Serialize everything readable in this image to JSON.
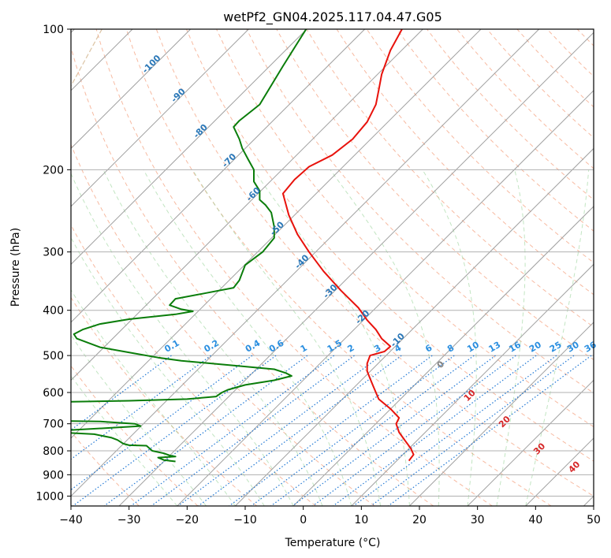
{
  "chart_data": {
    "type": "line",
    "title": "wetPf2_GN04.2025.117.04.47.G05",
    "xlabel": "Temperature (°C)",
    "ylabel": "Pressure (hPa)",
    "xlim": [
      -40,
      50
    ],
    "ylim": [
      1050,
      100
    ],
    "y_scale": "log",
    "grid": true,
    "x_ticks": [
      -40,
      -30,
      -20,
      -10,
      0,
      10,
      20,
      30,
      40,
      50
    ],
    "y_ticks": [
      100,
      200,
      300,
      400,
      500,
      600,
      700,
      800,
      900,
      1000
    ],
    "x_tick_labels": [
      "−40",
      "−30",
      "−20",
      "−10",
      "0",
      "10",
      "20",
      "30",
      "40",
      "50"
    ],
    "y_tick_labels": [
      "100",
      "200",
      "300",
      "400",
      "500",
      "600",
      "700",
      "800",
      "900",
      "1000"
    ],
    "skew_isotherm_labels": [
      {
        "text": "-100",
        "p": 120
      },
      {
        "text": "-90",
        "p": 140
      },
      {
        "text": "-80",
        "p": 167
      },
      {
        "text": "-70",
        "p": 193
      },
      {
        "text": "-60",
        "p": 228
      },
      {
        "text": "-50",
        "p": 270
      },
      {
        "text": "-40",
        "p": 318
      },
      {
        "text": "-30",
        "p": 368
      },
      {
        "text": "-20",
        "p": 418
      },
      {
        "text": "-10",
        "p": 468
      }
    ],
    "mixing_ratio_labels": [
      "0.1",
      "0.2",
      "0.4",
      "0.6",
      "1",
      "1.5",
      "2",
      "3",
      "4",
      "6",
      "8",
      "10",
      "13",
      "16",
      "20",
      "25",
      "30",
      "36"
    ],
    "mixing_ratio_values": [
      0.1,
      0.2,
      0.4,
      0.6,
      1,
      1.5,
      2,
      3,
      4,
      6,
      8,
      10,
      13,
      16,
      20,
      25,
      30,
      36
    ],
    "mixing_ratio_label_x": [
      -22.7,
      -15.9,
      -8.8,
      -4.7,
      0.7,
      5.3,
      8.8,
      13.4,
      16.9,
      22.2,
      26.0,
      29.4,
      33.1,
      36.6,
      40.1,
      43.6,
      46.6,
      49.6
    ],
    "isotherm_label_points": [
      {
        "text": "0",
        "t": 24,
        "p": 528,
        "color": "#808080"
      },
      {
        "text": "10",
        "t": 29,
        "p": 615,
        "color": "#d62728"
      },
      {
        "text": "20",
        "t": 35,
        "p": 700,
        "color": "#d62728"
      },
      {
        "text": "30",
        "t": 41,
        "p": 800,
        "color": "#d62728"
      },
      {
        "text": "40",
        "t": 47,
        "p": 875,
        "color": "#d62728"
      }
    ],
    "series": [
      {
        "color": "#e8120c",
        "points": [
          [
            17,
            100
          ],
          [
            15,
            111
          ],
          [
            13.5,
            125
          ],
          [
            13,
            135
          ],
          [
            12.5,
            145
          ],
          [
            11,
            158
          ],
          [
            8.5,
            172
          ],
          [
            5,
            186
          ],
          [
            1,
            197
          ],
          [
            -1.5,
            210
          ],
          [
            -3.5,
            225
          ],
          [
            -2.5,
            250
          ],
          [
            -1,
            275
          ],
          [
            1,
            300
          ],
          [
            3.5,
            330
          ],
          [
            6.5,
            363
          ],
          [
            9.5,
            395
          ],
          [
            11,
            420
          ],
          [
            12.5,
            440
          ],
          [
            13.5,
            460
          ],
          [
            15,
            478
          ],
          [
            14,
            490
          ],
          [
            11.5,
            500
          ],
          [
            11,
            520
          ],
          [
            11,
            540
          ],
          [
            11.5,
            560
          ],
          [
            12,
            580
          ],
          [
            12.5,
            600
          ],
          [
            13,
            620
          ],
          [
            15,
            650
          ],
          [
            16.5,
            680
          ],
          [
            16,
            700
          ],
          [
            16.5,
            730
          ],
          [
            17.5,
            760
          ],
          [
            18.5,
            790
          ],
          [
            19,
            815
          ],
          [
            18.5,
            830
          ],
          [
            18.2,
            840
          ]
        ]
      },
      {
        "color": "#0a7d0a",
        "points": [
          [
            0.5,
            100
          ],
          [
            -3.5,
            120
          ],
          [
            -7.5,
            145
          ],
          [
            -11,
            157
          ],
          [
            -12,
            162
          ],
          [
            -11,
            172
          ],
          [
            -10.5,
            180
          ],
          [
            -9.5,
            190
          ],
          [
            -8.5,
            200
          ],
          [
            -8.5,
            212
          ],
          [
            -7.5,
            222
          ],
          [
            -7.5,
            232
          ],
          [
            -6.5,
            238
          ],
          [
            -5.5,
            247
          ],
          [
            -5,
            265
          ],
          [
            -5,
            280
          ],
          [
            -7,
            300
          ],
          [
            -10,
            320
          ],
          [
            -11,
            345
          ],
          [
            -12,
            358
          ],
          [
            -17,
            368
          ],
          [
            -22,
            378
          ],
          [
            -23,
            390
          ],
          [
            -21,
            398
          ],
          [
            -19,
            402
          ],
          [
            -22,
            408
          ],
          [
            -30,
            418
          ],
          [
            -35,
            428
          ],
          [
            -38,
            440
          ],
          [
            -39.5,
            450
          ],
          [
            -39,
            460
          ],
          [
            -35,
            480
          ],
          [
            -29,
            495
          ],
          [
            -25,
            505
          ],
          [
            -21,
            513
          ],
          [
            -12,
            525
          ],
          [
            -5,
            535
          ],
          [
            -3,
            545
          ],
          [
            -2,
            553
          ],
          [
            -5,
            565
          ],
          [
            -10,
            578
          ],
          [
            -13,
            592
          ],
          [
            -14,
            600
          ],
          [
            -15,
            612
          ],
          [
            -20,
            620
          ],
          [
            -30,
            625
          ],
          [
            -40,
            628
          ],
          [
            -42,
            628
          ]
        ]
      },
      {
        "color": "#0a7d0a",
        "points": [
          [
            -42,
            690
          ],
          [
            -35,
            692
          ],
          [
            -29,
            700
          ],
          [
            -28,
            708
          ],
          [
            -33,
            714
          ],
          [
            -40,
            722
          ],
          [
            -44,
            728
          ],
          [
            -36,
            737
          ],
          [
            -33,
            750
          ],
          [
            -32,
            758
          ],
          [
            -31,
            772
          ],
          [
            -30,
            778
          ],
          [
            -27,
            780
          ],
          [
            -26,
            800
          ],
          [
            -24,
            810
          ],
          [
            -23,
            818
          ],
          [
            -22,
            823
          ],
          [
            -25,
            827
          ],
          [
            -24,
            837
          ],
          [
            -22,
            843
          ]
        ]
      }
    ]
  }
}
